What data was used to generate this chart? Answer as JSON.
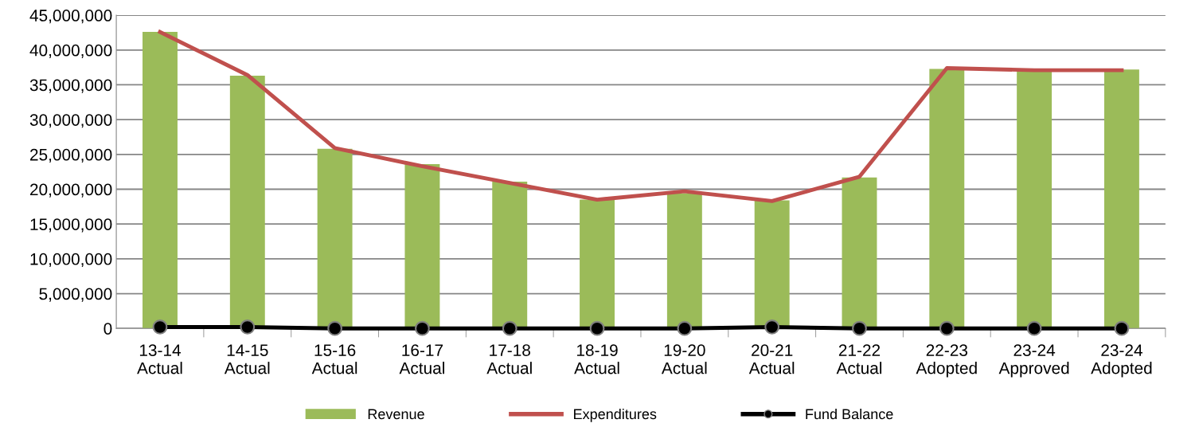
{
  "chart_data": {
    "type": "bar",
    "categories": [
      "13-14\nActual",
      "14-15\nActual",
      "15-16\nActual",
      "16-17\nActual",
      "17-18\nActual",
      "18-19\nActual",
      "19-20\nActual",
      "20-21\nActual",
      "21-22\nActual",
      "22-23\nAdopted",
      "23-24\nApproved",
      "23-24\nAdopted"
    ],
    "series": [
      {
        "name": "Revenue",
        "color": "#9bbb59",
        "values": [
          42600000,
          36300000,
          25800000,
          23600000,
          21100000,
          18500000,
          19400000,
          18400000,
          21700000,
          37300000,
          37000000,
          37200000
        ]
      },
      {
        "name": "Expenditures",
        "type": "line",
        "color": "#c0504d",
        "marker": "none",
        "values": [
          42600000,
          36400000,
          25900000,
          23300000,
          20900000,
          18500000,
          19700000,
          18300000,
          21800000,
          37400000,
          37100000,
          37100000
        ]
      },
      {
        "name": "Fund Balance",
        "type": "line",
        "color": "#000000",
        "marker": "circle",
        "values": [
          200000,
          200000,
          0,
          0,
          0,
          0,
          0,
          200000,
          0,
          0,
          0,
          0
        ]
      }
    ],
    "ylim": [
      0,
      45000000
    ],
    "yticks": [
      {
        "value": 0,
        "label": "0"
      },
      {
        "value": 5000000,
        "label": "5,000,000"
      },
      {
        "value": 10000000,
        "label": "10,000,000"
      },
      {
        "value": 15000000,
        "label": "15,000,000"
      },
      {
        "value": 20000000,
        "label": "20,000,000"
      },
      {
        "value": 25000000,
        "label": "25,000,000"
      },
      {
        "value": 30000000,
        "label": "30,000,000"
      },
      {
        "value": 35000000,
        "label": "35,000,000"
      },
      {
        "value": 40000000,
        "label": "40,000,000"
      },
      {
        "value": 45000000,
        "label": "45,000,000"
      }
    ],
    "grid": "y",
    "legend": "bottom"
  }
}
